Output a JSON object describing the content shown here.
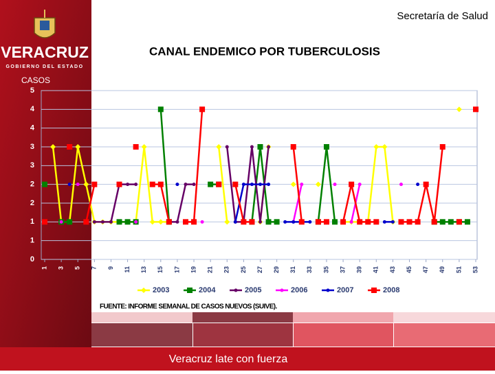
{
  "header": {
    "organization": "Secretaría de Salud",
    "state": "VERACRUZ",
    "government": "GOBIERNO DEL ESTADO"
  },
  "chart_data": {
    "type": "line",
    "title": "CANAL ENDEMICO POR TUBERCULOSIS",
    "y_label": "CASOS",
    "source": "FUENTE: INFORME SEMANAL DE CASOS NUEVOS (SUIVE).",
    "x": [
      1,
      2,
      3,
      4,
      5,
      6,
      7,
      8,
      9,
      10,
      11,
      12,
      13,
      14,
      15,
      16,
      17,
      18,
      19,
      20,
      21,
      22,
      23,
      24,
      25,
      26,
      27,
      28,
      29,
      30,
      31,
      32,
      33,
      34,
      35,
      36,
      37,
      38,
      39,
      40,
      41,
      42,
      43,
      44,
      45,
      46,
      47,
      48,
      49,
      50,
      51,
      52,
      53
    ],
    "xlim": [
      1,
      53
    ],
    "xticks": [
      1,
      3,
      5,
      7,
      9,
      11,
      13,
      15,
      17,
      19,
      21,
      23,
      25,
      27,
      29,
      31,
      33,
      35,
      37,
      39,
      41,
      43,
      45,
      47,
      49,
      51,
      53
    ],
    "ylim": [
      0,
      4.5
    ],
    "yticks": [
      0,
      {
        "value": 0.5,
        "label": "1"
      },
      1,
      {
        "value": 1.5,
        "label": "2"
      },
      2,
      {
        "value": 2.5,
        "label": "3"
      },
      3,
      {
        "value": 3.5,
        "label": "4"
      },
      4,
      {
        "value": 4.5,
        "label": "5"
      }
    ],
    "grid": true,
    "legend": "bottom",
    "series": [
      {
        "name": "2003",
        "color": "#ffff00",
        "marker": "diamond",
        "values": [
          null,
          3,
          1,
          1,
          3,
          2,
          1,
          1,
          1,
          1,
          1,
          1,
          3,
          1,
          1,
          1,
          null,
          null,
          null,
          null,
          null,
          3,
          1,
          null,
          null,
          null,
          1,
          3,
          null,
          null,
          2,
          null,
          null,
          2,
          null,
          null,
          1,
          1,
          1,
          1,
          3,
          3,
          1,
          null,
          null,
          null,
          null,
          null,
          null,
          null,
          4,
          null,
          null
        ]
      },
      {
        "name": "2004",
        "color": "#008000",
        "marker": "square",
        "values": [
          2,
          null,
          1,
          1,
          null,
          null,
          null,
          null,
          null,
          1,
          1,
          1,
          null,
          null,
          4,
          1,
          null,
          null,
          null,
          null,
          2,
          2,
          null,
          null,
          null,
          1,
          3,
          1,
          1,
          null,
          null,
          null,
          null,
          1,
          3,
          1,
          null,
          null,
          null,
          null,
          null,
          null,
          null,
          null,
          null,
          null,
          null,
          1,
          1,
          1,
          1,
          1,
          null
        ]
      },
      {
        "name": "2005",
        "color": "#660066",
        "marker": "dot",
        "values": [
          null,
          null,
          null,
          null,
          null,
          null,
          1,
          1,
          1,
          2,
          2,
          2,
          null,
          null,
          null,
          1,
          1,
          2,
          2,
          null,
          null,
          null,
          3,
          1,
          1,
          3,
          1,
          3,
          null,
          null,
          null,
          null,
          null,
          null,
          null,
          null,
          null,
          null,
          null,
          null,
          null,
          null,
          null,
          null,
          null,
          null,
          null,
          null,
          null,
          null,
          null,
          null,
          null
        ]
      },
      {
        "name": "2006",
        "color": "#ff00ff",
        "marker": "dot",
        "values": [
          null,
          null,
          1,
          null,
          2,
          null,
          null,
          null,
          null,
          null,
          null,
          1,
          null,
          null,
          null,
          null,
          null,
          null,
          null,
          1,
          null,
          null,
          null,
          null,
          null,
          null,
          null,
          null,
          null,
          null,
          1,
          2,
          null,
          null,
          null,
          2,
          null,
          1,
          2,
          null,
          null,
          null,
          null,
          2,
          null,
          null,
          null,
          null,
          null,
          null,
          null,
          null,
          null
        ]
      },
      {
        "name": "2007",
        "color": "#0000cc",
        "marker": "dot",
        "values": [
          null,
          null,
          null,
          2,
          null,
          null,
          null,
          null,
          null,
          null,
          null,
          null,
          null,
          null,
          null,
          null,
          2,
          null,
          null,
          null,
          null,
          null,
          null,
          1,
          2,
          2,
          2,
          2,
          null,
          1,
          1,
          1,
          1,
          null,
          null,
          null,
          null,
          null,
          null,
          null,
          null,
          1,
          1,
          null,
          null,
          2,
          null,
          null,
          null,
          null,
          null,
          null,
          null
        ]
      },
      {
        "name": "2008",
        "color": "#ff0000",
        "marker": "square",
        "values": [
          1,
          null,
          null,
          3,
          null,
          1,
          2,
          null,
          null,
          2,
          null,
          3,
          null,
          2,
          2,
          1,
          null,
          1,
          1,
          4,
          null,
          2,
          null,
          2,
          1,
          1,
          null,
          null,
          null,
          null,
          3,
          1,
          null,
          1,
          1,
          null,
          1,
          2,
          1,
          1,
          1,
          null,
          null,
          1,
          1,
          1,
          2,
          1,
          3,
          null,
          1,
          null,
          4
        ]
      }
    ]
  },
  "footer": {
    "slogan": "Veracruz late con fuerza"
  }
}
